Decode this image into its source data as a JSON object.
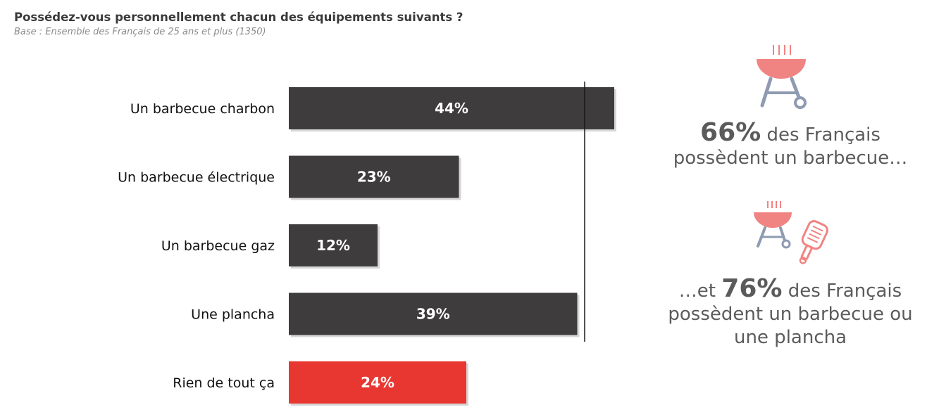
{
  "title": "Possédez-vous personnellement chacun des équipements suivants ?",
  "subtitle": "Base : Ensemble des Français de 25 ans et plus (1350)",
  "chart_data": {
    "type": "bar",
    "orientation": "horizontal",
    "categories": [
      "Un barbecue charbon",
      "Un barbecue électrique",
      "Un barbecue gaz",
      "Une plancha",
      "Rien de tout ça"
    ],
    "values": [
      44,
      23,
      12,
      39,
      24
    ],
    "value_labels": [
      "44%",
      "23%",
      "12%",
      "39%",
      "24%"
    ],
    "colors": [
      "#3e3c3d",
      "#3e3c3d",
      "#3e3c3d",
      "#3e3c3d",
      "#e83731"
    ],
    "xlim": [
      0,
      100
    ],
    "reference_line": 40,
    "grid": false,
    "legend": "none"
  },
  "callouts": {
    "first": {
      "pre": "",
      "big": "66%",
      "text": "des Français possèdent un barbecue…"
    },
    "second": {
      "pre": "…et",
      "big": "76%",
      "text": "des Français possèdent un barbecue ou une plancha"
    }
  },
  "colors": {
    "bar_dark": "#3e3c3d",
    "bar_red": "#e83731",
    "icon_red": "#f08483",
    "icon_grey": "#8e9bb1"
  },
  "icons": [
    "barbecue-icon",
    "barbecue-icon",
    "plancha-icon"
  ]
}
